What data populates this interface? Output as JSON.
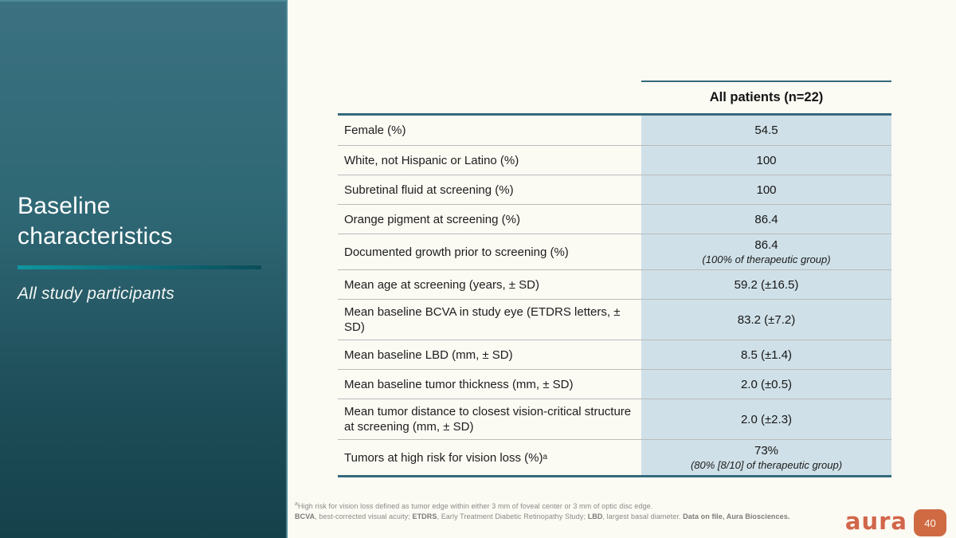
{
  "sidebar": {
    "title": "Baseline characteristics",
    "subtitle": "All study participants"
  },
  "table": {
    "header": "All patients (n=22)",
    "rows": [
      {
        "label": "Female (%)",
        "value": "54.5"
      },
      {
        "label": "White, not Hispanic or Latino (%)",
        "value": "100"
      },
      {
        "label": "Subretinal fluid at screening (%)",
        "value": "100"
      },
      {
        "label": "Orange pigment at screening (%)",
        "value": "86.4"
      },
      {
        "label": "Documented growth prior to screening (%)",
        "value": "86.4",
        "subvalue": "(100% of therapeutic group)"
      },
      {
        "label": "Mean age at screening (years, ± SD)",
        "value": "59.2 (±16.5)"
      },
      {
        "label": "Mean baseline BCVA in study eye (ETDRS letters, ± SD)",
        "value": "83.2 (±7.2)"
      },
      {
        "label": "Mean baseline LBD (mm, ± SD)",
        "value": "8.5 (±1.4)"
      },
      {
        "label": "Mean baseline tumor thickness (mm, ± SD)",
        "value": "2.0 (±0.5)"
      },
      {
        "label": "Mean tumor distance to closest vision-critical structure at screening (mm, ± SD)",
        "value": "2.0 (±2.3)"
      },
      {
        "label": "Tumors at high risk for vision loss (%)",
        "label_sup": "a",
        "value": "73%",
        "subvalue": "(80% [8/10] of therapeutic group)"
      }
    ]
  },
  "footnote": {
    "line1_sup": "a",
    "line1": "High risk for vision loss defined as tumor edge within either 3 mm of foveal center or 3 mm of optic disc edge.",
    "line2": {
      "seg1_bold": "BCVA",
      "seg2": ", best-corrected visual acuity; ",
      "seg3_bold": "ETDRS",
      "seg4": ", Early Treatment Diabetic Retinopathy Study; ",
      "seg5_bold": "LBD",
      "seg6": ", largest basal diameter. ",
      "seg7_bold": "Data on file, Aura Biosciences."
    }
  },
  "footer": {
    "logo_text": "aura",
    "page_number": "40"
  },
  "colors": {
    "sidebar_gradient_top": "#3b7181",
    "sidebar_gradient_bottom": "#15414b",
    "sidebar_edge_highlight": "#4f8a9a",
    "accent_divider_left": "#0f96a1",
    "accent_divider_right": "#0a4e59",
    "table_border": "#356a7d",
    "row_separator": "#b9bcbc",
    "value_cell_bg": "#cfe0e8",
    "page_bg": "#fbfaf3",
    "brand_orange": "#d2664a",
    "page_box_orange": "#cf6a43"
  }
}
